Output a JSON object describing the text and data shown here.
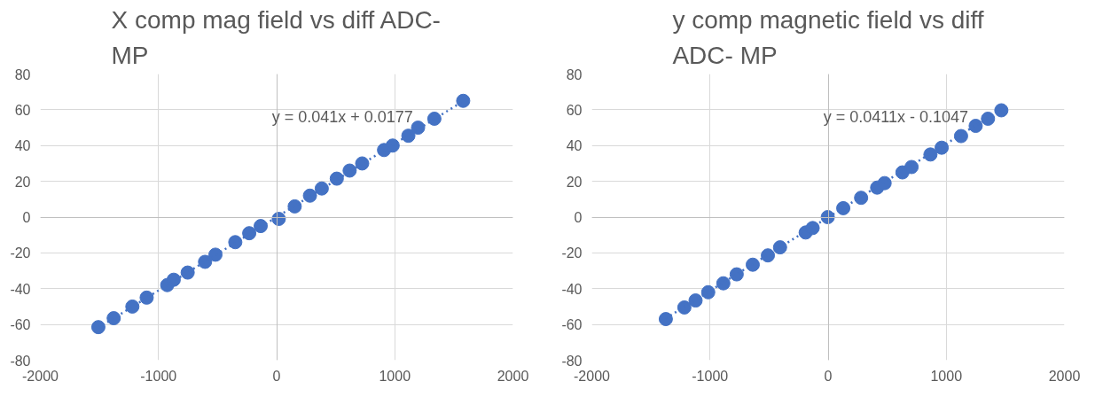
{
  "chart_data": [
    {
      "type": "scatter",
      "title": "X comp mag field vs diff ADC-MP",
      "grid": true,
      "xlim": [
        -2000,
        2000
      ],
      "xticks": [
        -2000,
        -1000,
        0,
        1000,
        2000
      ],
      "ylim": [
        -80,
        80
      ],
      "yticks": [
        -80,
        -60,
        -40,
        -20,
        0,
        20,
        40,
        60,
        80
      ],
      "annotations": [
        "y = 0.041x + 0.0177"
      ],
      "series": [
        {
          "marker": "circle",
          "color": "#4472c4",
          "x": [
            -1509,
            -1379,
            -1221,
            -1100,
            -926,
            -871,
            -753,
            -606,
            -518,
            -350,
            -232,
            -135,
            18,
            153,
            282,
            382,
            509,
            618,
            724,
            909,
            982,
            1115,
            1197,
            1335,
            1579
          ],
          "values": [
            -61.5,
            -56.5,
            -50,
            -45,
            -38,
            -35,
            -31,
            -25,
            -21,
            -14,
            -9,
            -5,
            -1,
            6,
            12,
            16,
            21.5,
            26,
            30,
            37.5,
            40,
            45.5,
            50,
            55,
            65
          ]
        },
        {
          "type": "line",
          "line_style": "dotted",
          "color": "#4472c4",
          "x": [
            -1509,
            1579
          ],
          "values": [
            -61.9,
            64.8
          ]
        }
      ]
    },
    {
      "type": "scatter",
      "title": "y comp magnetic field vs diff ADC- MP",
      "grid": true,
      "xlim": [
        -2000,
        2000
      ],
      "xticks": [
        -2000,
        -1000,
        0,
        1000,
        2000
      ],
      "ylim": [
        -80,
        80
      ],
      "yticks": [
        -80,
        -60,
        -40,
        -20,
        0,
        20,
        40,
        60,
        80
      ],
      "annotations": [
        "y = 0.0411x - 0.1047"
      ],
      "series": [
        {
          "marker": "circle",
          "color": "#4472c4",
          "x": [
            -1374,
            -1217,
            -1122,
            -1015,
            -887,
            -774,
            -638,
            -510,
            -407,
            -190,
            -131,
            -3,
            128,
            279,
            415,
            478,
            629,
            706,
            866,
            961,
            1125,
            1249,
            1353,
            1466
          ],
          "values": [
            -57,
            -50.5,
            -46.6,
            -42,
            -37,
            -32,
            -26.6,
            -21.4,
            -16.9,
            -8.6,
            -6.1,
            0,
            5,
            10.8,
            16.5,
            19,
            25,
            28,
            35,
            38.8,
            45.3,
            51,
            55,
            59.7
          ]
        },
        {
          "type": "line",
          "line_style": "dotted",
          "color": "#4472c4",
          "x": [
            -1374,
            1466
          ],
          "values": [
            -56.6,
            60.2
          ]
        }
      ]
    }
  ]
}
